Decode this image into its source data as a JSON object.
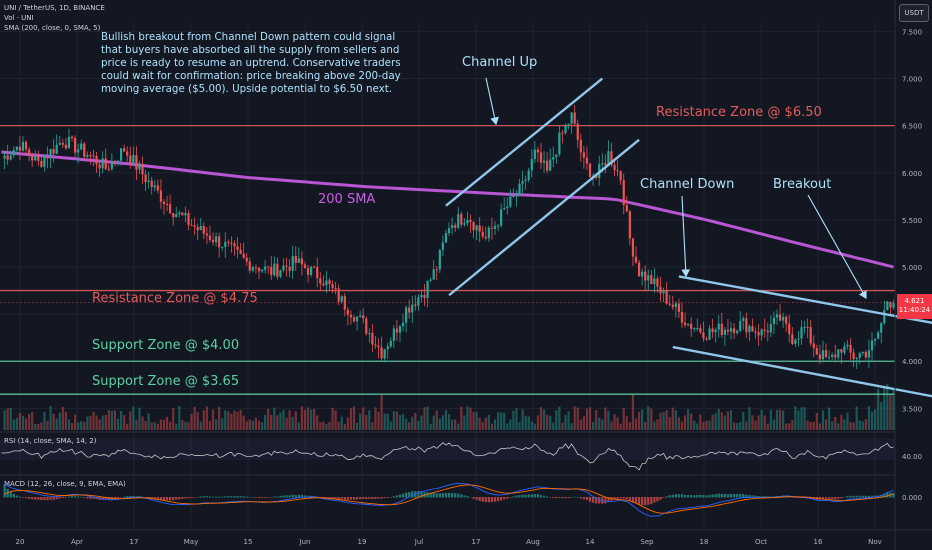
{
  "legend": {
    "symbol_line": "UNI / TetherUS, 1D, BINANCE",
    "volume_line": "Vol · UNI",
    "sma_line": "SMA (200, close, 0, SMA, 5)",
    "rsi_line": "RSI (14, close, SMA, 14, 2)",
    "macd_line": "MACD (12, 26, close, 9, EMA, EMA)"
  },
  "commentary": "Bullish breakout from Channel Down pattern could signal that buyers have absorbed all the supply from sellers and price is ready to resume an uptrend. Conservative traders could wait for confirmation: price breaking above 200-day moving average ($5.00). Upside potential to $6.50 next.",
  "currency_badge": "USDT",
  "price_tag": {
    "price": "4.621",
    "countdown": "11:40:24"
  },
  "colors": {
    "background": "#131722",
    "candle_up": "#26a69a",
    "candle_down": "#ef5350",
    "sma": "#cc5de8",
    "resistance": "#e25b5b",
    "support": "#5bd1a4",
    "channel": "#8fc6ea",
    "annotation_text": "#aee0fb"
  },
  "chart_data": [
    {
      "type": "candlestick",
      "title": "UNI / TetherUS, 1D, BINANCE",
      "x_tick_labels": [
        "20",
        "Apr",
        "17",
        "May",
        "15",
        "Jun",
        "19",
        "Jul",
        "17",
        "Aug",
        "14",
        "Sep",
        "18",
        "Oct",
        "16",
        "Nov"
      ],
      "y_tick_labels": [
        "7.500",
        "7.000",
        "6.500",
        "6.000",
        "5.500",
        "5.000",
        "4.500",
        "4.000",
        "3.500"
      ],
      "ylim": [
        3.27,
        7.6
      ],
      "grid": true,
      "close_path": [
        [
          0,
          6.15
        ],
        [
          6,
          6.3
        ],
        [
          12,
          6.1
        ],
        [
          20,
          6.35
        ],
        [
          28,
          6.2
        ],
        [
          34,
          6.05
        ],
        [
          40,
          6.25
        ],
        [
          48,
          5.9
        ],
        [
          56,
          5.6
        ],
        [
          64,
          5.4
        ],
        [
          72,
          5.25
        ],
        [
          80,
          5.05
        ],
        [
          88,
          4.95
        ],
        [
          96,
          5.05
        ],
        [
          104,
          4.9
        ],
        [
          112,
          4.6
        ],
        [
          118,
          4.4
        ],
        [
          124,
          4.1
        ],
        [
          128,
          4.3
        ],
        [
          132,
          4.55
        ],
        [
          138,
          4.75
        ],
        [
          142,
          5.0
        ],
        [
          146,
          5.45
        ],
        [
          152,
          5.55
        ],
        [
          158,
          5.3
        ],
        [
          164,
          5.6
        ],
        [
          170,
          5.85
        ],
        [
          174,
          6.2
        ],
        [
          178,
          6.0
        ],
        [
          182,
          6.35
        ],
        [
          186,
          6.6
        ],
        [
          190,
          6.1
        ],
        [
          194,
          5.95
        ],
        [
          198,
          6.2
        ],
        [
          202,
          5.95
        ],
        [
          205,
          5.3
        ],
        [
          208,
          4.95
        ],
        [
          212,
          4.85
        ],
        [
          216,
          4.7
        ],
        [
          220,
          4.55
        ],
        [
          224,
          4.4
        ],
        [
          230,
          4.3
        ],
        [
          236,
          4.35
        ],
        [
          242,
          4.4
        ],
        [
          248,
          4.3
        ],
        [
          254,
          4.45
        ],
        [
          258,
          4.25
        ],
        [
          262,
          4.35
        ],
        [
          266,
          4.1
        ],
        [
          270,
          4.0
        ],
        [
          274,
          4.15
        ],
        [
          278,
          4.05
        ],
        [
          282,
          4.1
        ],
        [
          285,
          4.2
        ],
        [
          287,
          4.4
        ],
        [
          289,
          4.65
        ],
        [
          291,
          4.62
        ]
      ],
      "sma_200_path": [
        [
          0,
          6.22
        ],
        [
          40,
          6.1
        ],
        [
          80,
          5.95
        ],
        [
          120,
          5.85
        ],
        [
          160,
          5.78
        ],
        [
          200,
          5.72
        ],
        [
          230,
          5.5
        ],
        [
          260,
          5.25
        ],
        [
          291,
          5.0
        ]
      ],
      "horizontal_levels": [
        {
          "label": "Resistance Zone @ $6.50",
          "value": 6.5,
          "kind": "resistance"
        },
        {
          "label": "Resistance Zone @ $4.75",
          "value": 4.75,
          "kind": "resistance"
        },
        {
          "label": "Support Zone @ $4.00",
          "value": 4.0,
          "kind": "support"
        },
        {
          "label": "Support Zone @ $3.65",
          "value": 3.65,
          "kind": "support"
        }
      ],
      "trendlines": [
        {
          "name": "channel-up-upper",
          "from": [
            145,
            5.65
          ],
          "to": [
            196,
            7.0
          ]
        },
        {
          "name": "channel-up-lower",
          "from": [
            146,
            4.7
          ],
          "to": [
            208,
            6.35
          ]
        },
        {
          "name": "channel-down-upper",
          "from": [
            221,
            4.9
          ],
          "to": [
            305,
            4.4
          ]
        },
        {
          "name": "channel-down-lower",
          "from": [
            219,
            4.15
          ],
          "to": [
            305,
            3.62
          ]
        }
      ],
      "annotations": [
        {
          "text": "Channel Up",
          "at": [
            172,
            7.15
          ]
        },
        {
          "text": "Channel Down",
          "at": [
            237,
            5.85
          ]
        },
        {
          "text": "Breakout",
          "at": [
            278,
            5.85
          ]
        },
        {
          "text": "200 SMA",
          "at": [
            118,
            5.55
          ]
        }
      ]
    },
    {
      "type": "bar",
      "title": "Vol · UNI",
      "note": "volume histogram under price"
    },
    {
      "type": "line",
      "title": "RSI (14, close, SMA, 14, 2)",
      "y_tick_labels": [
        "40.00"
      ]
    },
    {
      "type": "line",
      "title": "MACD (12, 26, close, 9, EMA, EMA)",
      "y_tick_labels": [
        "0.000"
      ]
    }
  ]
}
